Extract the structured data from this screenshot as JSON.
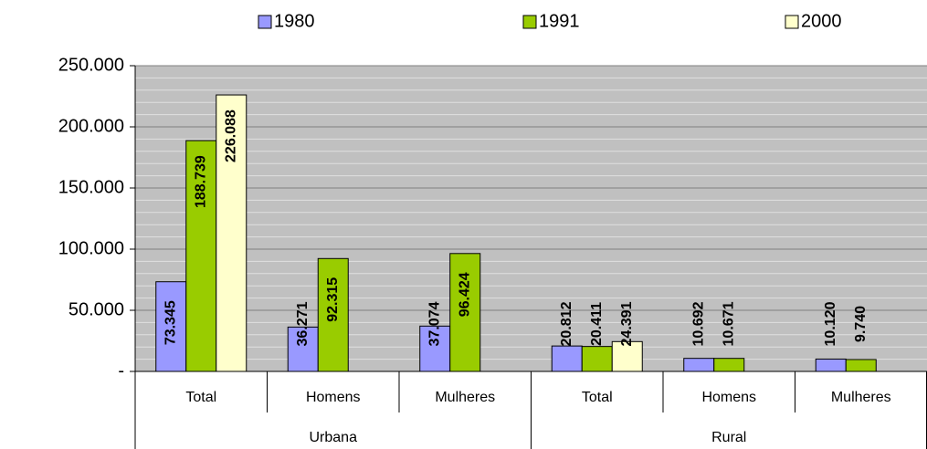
{
  "chart_data": {
    "type": "bar",
    "groups": [
      "Urbana",
      "Rural"
    ],
    "categories": [
      "Total",
      "Homens",
      "Mulheres",
      "Total",
      "Homens",
      "Mulheres"
    ],
    "series": [
      {
        "name": "1980",
        "color": "#9999ff",
        "values": [
          73345,
          36271,
          37074,
          20812,
          10692,
          10120
        ],
        "value_labels": [
          "73.345",
          "36.271",
          "37.074",
          "20.812",
          "10.692",
          "10.120"
        ]
      },
      {
        "name": "1991",
        "color": "#99cc00",
        "values": [
          188739,
          92315,
          96424,
          20411,
          10671,
          9740
        ],
        "value_labels": [
          "188.739",
          "92.315",
          "96.424",
          "20.411",
          "10.671",
          "9.740"
        ]
      },
      {
        "name": "2000",
        "color": "#ffffcc",
        "values": [
          226088,
          null,
          null,
          24391,
          null,
          null
        ],
        "value_labels": [
          "226.088",
          null,
          null,
          "24.391",
          null,
          null
        ]
      }
    ],
    "ylim": [
      0,
      250000
    ],
    "yticks": [
      {
        "value": 0,
        "label": "-"
      },
      {
        "value": 50000,
        "label": "50.000"
      },
      {
        "value": 100000,
        "label": "100.000"
      },
      {
        "value": 150000,
        "label": "150.000"
      },
      {
        "value": 200000,
        "label": "200.000"
      },
      {
        "value": 250000,
        "label": "250.000"
      }
    ],
    "grid": true
  }
}
